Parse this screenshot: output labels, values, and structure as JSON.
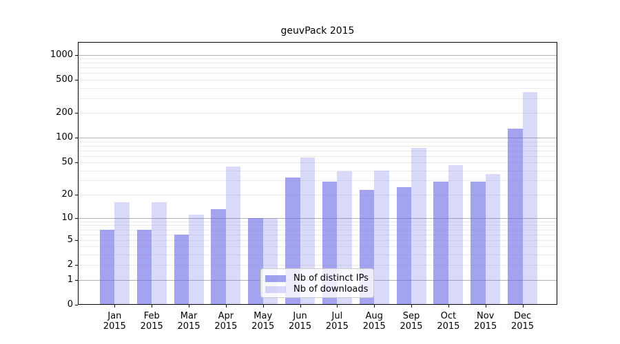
{
  "chart_data": {
    "type": "bar",
    "title": "geuvPack 2015",
    "categories": [
      "Jan",
      "Feb",
      "Mar",
      "Apr",
      "May",
      "Jun",
      "Jul",
      "Aug",
      "Sep",
      "Oct",
      "Nov",
      "Dec"
    ],
    "year_label": "2015",
    "series": [
      {
        "name": "Nb of distinct IPs",
        "color": "rgba(102,102,230,0.6)",
        "values": [
          7,
          7,
          6,
          13,
          10,
          33,
          29,
          23,
          25,
          29,
          29,
          130
        ]
      },
      {
        "name": "Nb of downloads",
        "color": "rgba(102,102,230,0.25)",
        "values": [
          16,
          16,
          11,
          45,
          10,
          57,
          39,
          40,
          76,
          46,
          36,
          358
        ]
      }
    ],
    "yscale": "log1p",
    "ylim": [
      0,
      1424
    ],
    "yticks": [
      1000,
      500,
      200,
      100,
      50,
      20,
      10,
      5,
      2,
      1,
      0
    ],
    "minor_gridlines": [
      2,
      3,
      4,
      5,
      6,
      7,
      8,
      9,
      20,
      30,
      40,
      50,
      60,
      70,
      80,
      90,
      200,
      300,
      400,
      500,
      600,
      700,
      800,
      900
    ],
    "major_gridlines": [
      1,
      10,
      100,
      1000
    ],
    "grid": true,
    "legend_position": "lower center inside"
  },
  "colors": {
    "background": "#ffffff",
    "spine": "#000000",
    "grid_major": "#b0b0b0",
    "grid_minor": "#ebebeb",
    "text": "#000000",
    "legend_border": "#cccccc",
    "legend_bg": "rgba(255,255,255,0.8)"
  }
}
